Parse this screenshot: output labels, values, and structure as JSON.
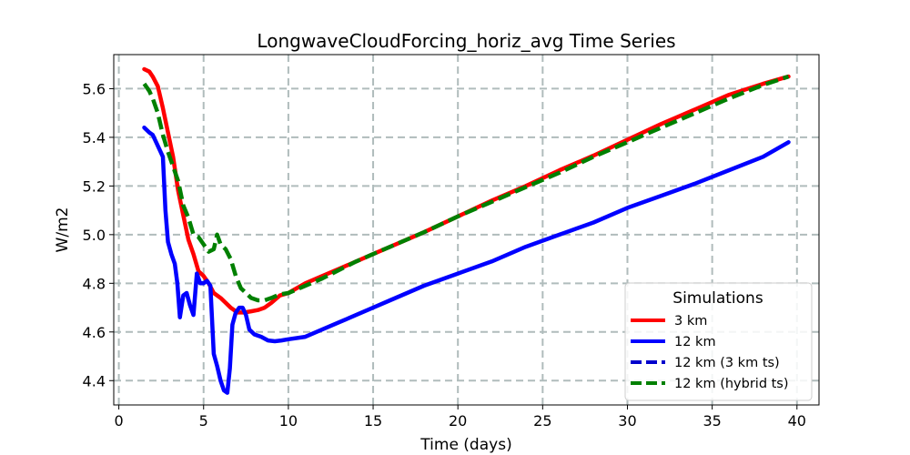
{
  "chart_data": {
    "type": "line",
    "title": "LongwaveCloudForcing_horiz_avg Time Series",
    "xlabel": "Time (days)",
    "ylabel": "W/m2",
    "xlim": [
      -0.3,
      41.3
    ],
    "ylim": [
      4.3,
      5.74
    ],
    "xticks": [
      0,
      5,
      10,
      15,
      20,
      25,
      30,
      35,
      40
    ],
    "yticks": [
      4.4,
      4.6,
      4.8,
      5.0,
      5.2,
      5.4,
      5.6
    ],
    "ytick_labels": [
      "4.4",
      "4.6",
      "4.8",
      "5.0",
      "5.2",
      "5.4",
      "5.6"
    ],
    "grid": true,
    "legend": {
      "title": "Simulations",
      "position": "lower-right"
    },
    "series": [
      {
        "name": "3 km",
        "color": "#ff0000",
        "style": "solid",
        "x": [
          1.5,
          1.8,
          2.0,
          2.3,
          2.6,
          2.9,
          3.2,
          3.5,
          3.8,
          4.1,
          4.4,
          4.7,
          5.0,
          5.3,
          5.6,
          6.0,
          6.3,
          6.6,
          7.0,
          7.4,
          7.8,
          8.2,
          8.6,
          9.0,
          9.5,
          10.0,
          11.0,
          12.0,
          13.0,
          14.0,
          15.0,
          16.0,
          18.0,
          20.0,
          22.0,
          24.0,
          26.0,
          28.0,
          30.0,
          32.0,
          34.0,
          36.0,
          38.0,
          39.5
        ],
        "values": [
          5.68,
          5.67,
          5.65,
          5.61,
          5.52,
          5.42,
          5.32,
          5.18,
          5.08,
          4.98,
          4.92,
          4.85,
          4.83,
          4.8,
          4.76,
          4.74,
          4.72,
          4.7,
          4.68,
          4.68,
          4.685,
          4.69,
          4.7,
          4.72,
          4.75,
          4.76,
          4.8,
          4.83,
          4.86,
          4.89,
          4.92,
          4.95,
          5.01,
          5.075,
          5.14,
          5.2,
          5.265,
          5.325,
          5.39,
          5.455,
          5.515,
          5.575,
          5.62,
          5.65
        ]
      },
      {
        "name": "12 km",
        "color": "#0000ff",
        "style": "solid",
        "x": [
          1.5,
          1.8,
          2.0,
          2.2,
          2.4,
          2.6,
          2.75,
          2.9,
          3.1,
          3.3,
          3.45,
          3.6,
          3.8,
          4.0,
          4.2,
          4.4,
          4.6,
          4.8,
          5.0,
          5.2,
          5.4,
          5.6,
          5.8,
          6.0,
          6.2,
          6.4,
          6.55,
          6.7,
          6.9,
          7.1,
          7.3,
          7.5,
          7.7,
          8.0,
          8.4,
          8.8,
          9.2,
          9.6,
          10.0,
          11.0,
          12.0,
          13.0,
          14.0,
          15.0,
          16.0,
          18.0,
          20.0,
          22.0,
          24.0,
          26.0,
          28.0,
          30.0,
          32.0,
          34.0,
          36.0,
          38.0,
          39.5
        ],
        "values": [
          5.44,
          5.42,
          5.41,
          5.38,
          5.35,
          5.32,
          5.1,
          4.97,
          4.92,
          4.88,
          4.8,
          4.66,
          4.75,
          4.76,
          4.71,
          4.67,
          4.84,
          4.8,
          4.8,
          4.81,
          4.79,
          4.51,
          4.46,
          4.4,
          4.36,
          4.35,
          4.45,
          4.63,
          4.68,
          4.7,
          4.7,
          4.67,
          4.61,
          4.59,
          4.58,
          4.565,
          4.562,
          4.565,
          4.57,
          4.58,
          4.61,
          4.64,
          4.67,
          4.7,
          4.73,
          4.79,
          4.84,
          4.89,
          4.95,
          5.0,
          5.05,
          5.11,
          5.16,
          5.21,
          5.265,
          5.32,
          5.38
        ]
      },
      {
        "name": "12 km (3 km ts)",
        "color": "#0000cc",
        "style": "dashed",
        "x": [],
        "values": []
      },
      {
        "name": "12 km (hybrid ts)",
        "color": "#008000",
        "style": "dashed",
        "x": [
          1.5,
          1.8,
          2.0,
          2.3,
          2.6,
          2.9,
          3.2,
          3.5,
          3.8,
          4.1,
          4.4,
          4.7,
          5.0,
          5.3,
          5.6,
          5.8,
          6.0,
          6.3,
          6.6,
          6.9,
          7.2,
          7.5,
          7.8,
          8.2,
          8.6,
          9.0,
          9.5,
          10.0,
          11.0,
          12.0,
          13.0,
          14.0,
          15.0,
          16.0,
          18.0,
          20.0,
          22.0,
          24.0,
          26.0,
          28.0,
          30.0,
          32.0,
          34.0,
          36.0,
          38.0,
          39.5
        ],
        "values": [
          5.62,
          5.59,
          5.56,
          5.5,
          5.41,
          5.34,
          5.28,
          5.22,
          5.12,
          5.07,
          5.0,
          4.99,
          4.96,
          4.93,
          4.94,
          5.0,
          4.96,
          4.94,
          4.9,
          4.83,
          4.78,
          4.76,
          4.74,
          4.73,
          4.73,
          4.74,
          4.755,
          4.76,
          4.79,
          4.82,
          4.855,
          4.89,
          4.92,
          4.95,
          5.01,
          5.075,
          5.135,
          5.195,
          5.255,
          5.32,
          5.38,
          5.44,
          5.5,
          5.56,
          5.615,
          5.65
        ]
      }
    ]
  }
}
